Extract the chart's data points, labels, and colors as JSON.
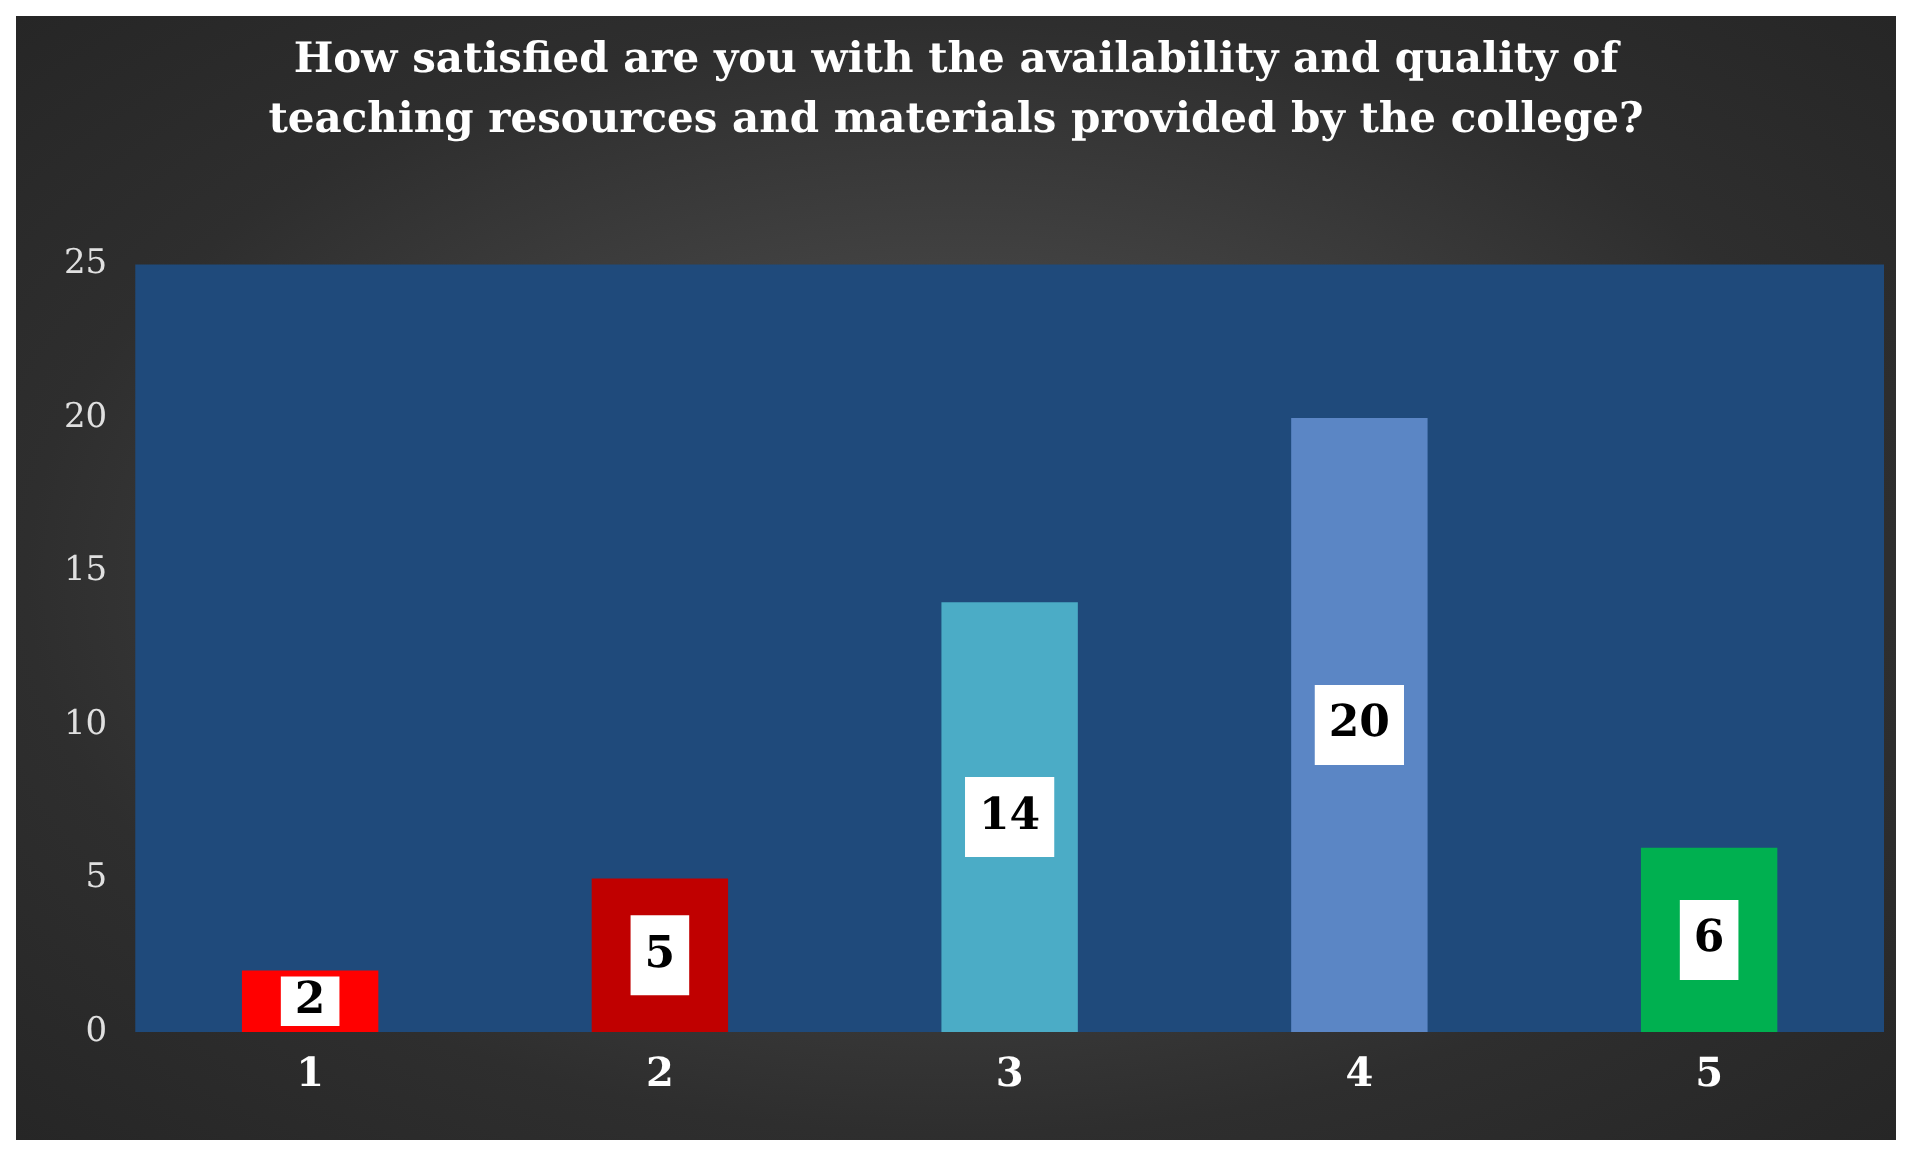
{
  "chart_data": {
    "type": "bar",
    "title": "How satisfied are you with the availability and quality of teaching resources and materials provided by the college?",
    "categories": [
      "1",
      "2",
      "3",
      "4",
      "5"
    ],
    "values": [
      2,
      5,
      14,
      20,
      6
    ],
    "colors": [
      "#ff0000",
      "#c00000",
      "#4bacc6",
      "#5b86c5",
      "#00b050"
    ],
    "ylim": [
      0,
      25
    ],
    "yticks": [
      0,
      5,
      10,
      15,
      20,
      25
    ],
    "grid": false,
    "legend": false,
    "data_labels": true
  }
}
